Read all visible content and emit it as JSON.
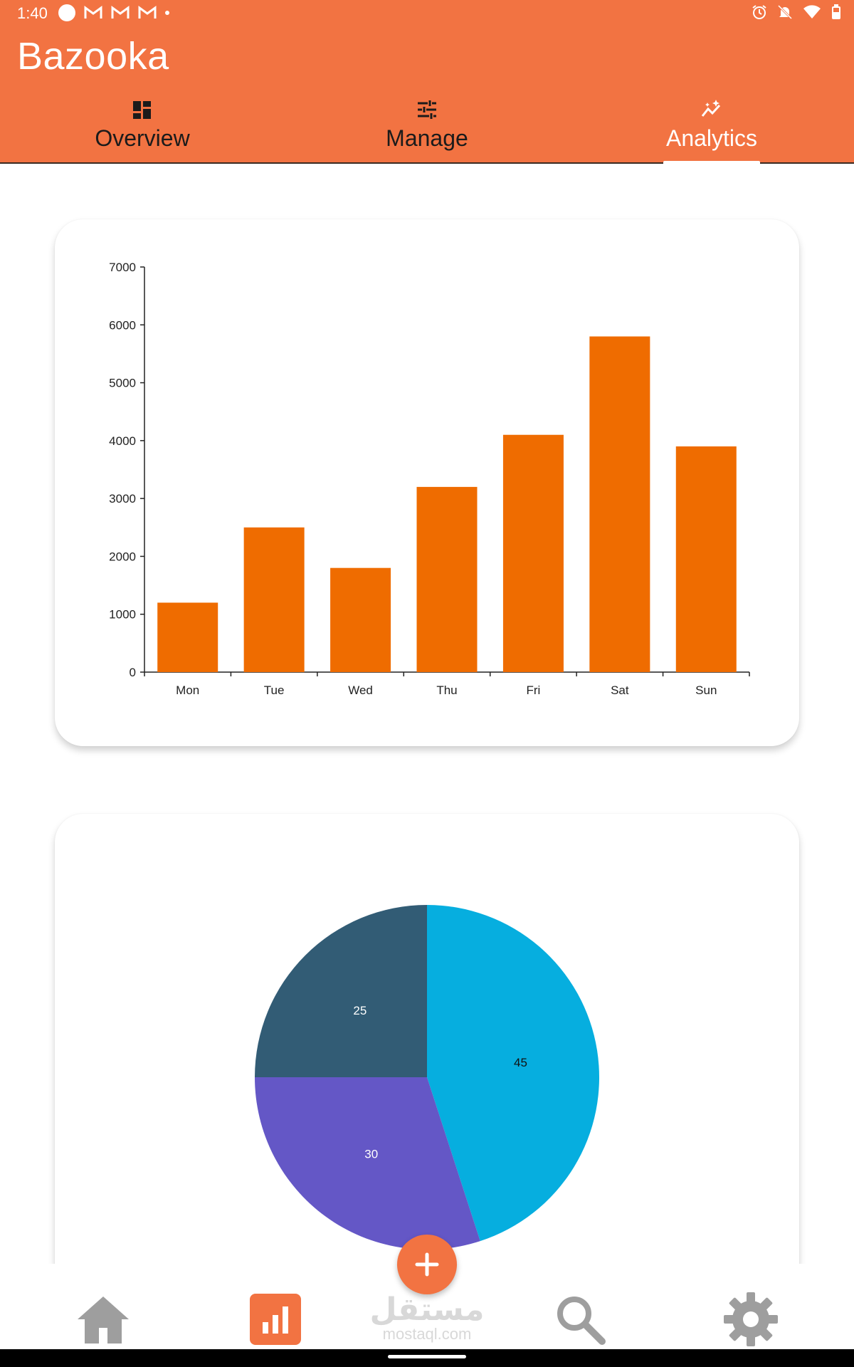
{
  "status_bar": {
    "time": "1:40"
  },
  "app": {
    "title": "Bazooka",
    "accent_color": "#F27342"
  },
  "tabs": [
    {
      "label": "Overview",
      "icon": "dashboard-icon",
      "active": false
    },
    {
      "label": "Manage",
      "icon": "tune-sliders-icon",
      "active": false
    },
    {
      "label": "Analytics",
      "icon": "insights-icon",
      "active": true
    }
  ],
  "chart_data": [
    {
      "type": "bar",
      "categories": [
        "Mon",
        "Tue",
        "Wed",
        "Thu",
        "Fri",
        "Sat",
        "Sun"
      ],
      "values": [
        1200,
        2500,
        1800,
        3200,
        4100,
        5800,
        3900
      ],
      "ylim": [
        0,
        7000
      ],
      "yticks": [
        0,
        1000,
        2000,
        3000,
        4000,
        5000,
        6000,
        7000
      ],
      "bar_color": "#EF6C00",
      "title": "",
      "xlabel": "",
      "ylabel": ""
    },
    {
      "type": "pie",
      "slices": [
        {
          "value": 45,
          "color": "#06AEDF",
          "label_color": "#111111"
        },
        {
          "value": 30,
          "color": "#6457C6",
          "label_color": "#ffffff"
        },
        {
          "value": 25,
          "color": "#325C75",
          "label_color": "#ffffff"
        }
      ]
    }
  ],
  "bottom_nav": {
    "items": [
      "home-icon",
      "analytics-icon",
      "search-icon",
      "settings-icon"
    ],
    "active": "analytics-icon",
    "fab_icon": "add-icon"
  },
  "watermark": {
    "arabic": "مستقل",
    "latin": "mostaql.com"
  }
}
